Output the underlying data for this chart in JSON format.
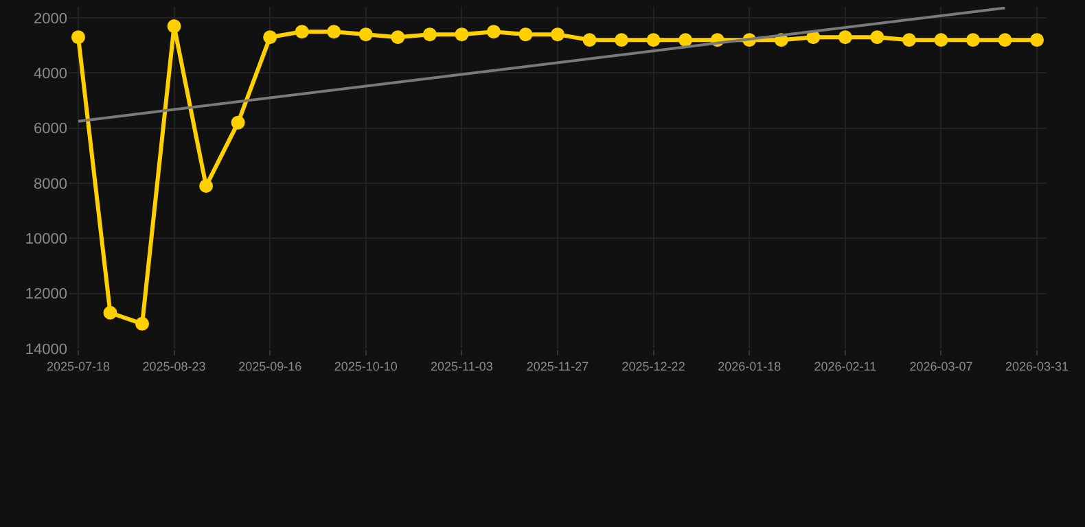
{
  "chart_data": {
    "type": "line",
    "categories": [
      "2025-07-18",
      null,
      null,
      "2025-08-23",
      null,
      null,
      "2025-09-16",
      null,
      null,
      "2025-10-10",
      null,
      null,
      "2025-11-03",
      null,
      null,
      "2025-11-27",
      null,
      null,
      "2025-12-22",
      null,
      null,
      "2026-01-18",
      null,
      null,
      "2026-02-11",
      null,
      null,
      "2026-03-07",
      null,
      null,
      "2026-03-31"
    ],
    "series": [
      {
        "color": "#ffd000",
        "marker": "circle",
        "values": [
          2700,
          12700,
          13100,
          2300,
          8100,
          5800,
          2700,
          2500,
          2500,
          2600,
          2700,
          2600,
          2600,
          2500,
          2600,
          2600,
          2800,
          2800,
          2800,
          2800,
          2800,
          2800,
          2800,
          2700,
          2700,
          2700,
          2800,
          2800,
          2800,
          2800,
          2800
        ]
      },
      {
        "color": "#7a7a7a",
        "marker": "none",
        "values": [
          5750,
          null,
          null,
          null,
          null,
          null,
          null,
          null,
          null,
          null,
          null,
          null,
          null,
          null,
          null,
          null,
          null,
          null,
          null,
          null,
          null,
          null,
          null,
          null,
          null,
          null,
          null,
          null,
          null,
          1640,
          null
        ]
      }
    ],
    "ylim": [
      14000,
      1600
    ],
    "yticks": [
      2000,
      4000,
      6000,
      8000,
      10000,
      12000,
      14000
    ],
    "grid": true
  }
}
